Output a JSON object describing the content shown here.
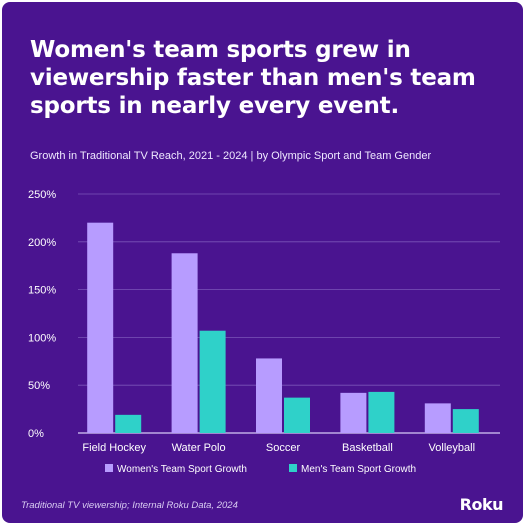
{
  "headline": "Women's team sports grew in viewership faster than men's team sports in nearly every event.",
  "subtitle": "Growth in Traditional TV Reach, 2021 - 2024 | by Olympic Sport and Team Gender",
  "footnote": "Traditional TV viewership; Internal Roku Data, 2024",
  "logo": "Roku",
  "colors": {
    "background": "#4a1490",
    "women": "#b79cff",
    "men": "#2fd1c9",
    "grid": "#7a55b8"
  },
  "chart_data": {
    "type": "bar",
    "categories": [
      "Field Hockey",
      "Water Polo",
      "Soccer",
      "Basketball",
      "Volleyball"
    ],
    "series": [
      {
        "name": "Women's Team Sport Growth",
        "values": [
          220,
          188,
          78,
          42,
          31
        ]
      },
      {
        "name": "Men's Team Sport Growth",
        "values": [
          19,
          107,
          37,
          43,
          25
        ]
      }
    ],
    "ylim": [
      0,
      250
    ],
    "yticks": [
      0,
      50,
      100,
      150,
      200,
      250
    ],
    "ytick_labels": [
      "0%",
      "50%",
      "100%",
      "150%",
      "200%",
      "250%"
    ],
    "grid": true,
    "legend": "bottom"
  }
}
